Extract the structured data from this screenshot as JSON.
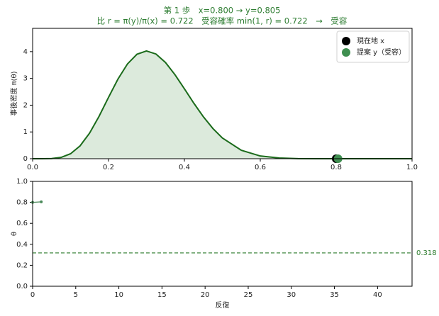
{
  "chart_data": [
    {
      "type": "line",
      "title": "第 1 歩　x=0.800 → y=0.805",
      "subtitle": "比 r = π(y)/π(x) = 0.722　受容確率 min(1, r) = 0.722　→　受容",
      "ylabel": "事後密度 π(θ)",
      "x": [
        0,
        0.025,
        0.05,
        0.075,
        0.1,
        0.125,
        0.15,
        0.175,
        0.2,
        0.225,
        0.25,
        0.275,
        0.3,
        0.325,
        0.35,
        0.375,
        0.4,
        0.425,
        0.45,
        0.475,
        0.5,
        0.55,
        0.6,
        0.65,
        0.7,
        0.75,
        0.8,
        0.9,
        1.0
      ],
      "values": [
        0,
        0.0001,
        0.0062,
        0.0486,
        0.1862,
        0.4789,
        0.9529,
        1.5818,
        2.2911,
        2.9779,
        3.5408,
        3.9033,
        4.0244,
        3.9114,
        3.5966,
        3.1413,
        2.6127,
        2.071,
        1.5665,
        1.1299,
        0.7762,
        0.3147,
        0.1019,
        0.0254,
        0.0046,
        0.0005,
        0,
        0,
        0
      ],
      "color": "#1b6b1b",
      "fill": "#dceadc",
      "points": [
        {
          "name": "現在地 x",
          "color": "#000000",
          "x": 0.8,
          "y": 0
        },
        {
          "name": "提案 y（受容）",
          "color": "#3f8f50",
          "x": 0.805,
          "y": 0
        }
      ],
      "legend": "upper right",
      "xlim": [
        0,
        1
      ],
      "ylim": [
        0,
        4.87
      ],
      "xticks": [
        {
          "value": 0,
          "label": "0.0"
        },
        0.2,
        0.4,
        0.6,
        0.8,
        {
          "value": 1,
          "label": "1.0"
        }
      ],
      "yticks": [
        0,
        1,
        2,
        3,
        4
      ]
    },
    {
      "type": "line",
      "xlabel": "反復",
      "ylabel": "θ",
      "x": [
        0,
        1
      ],
      "values": [
        0.8,
        0.805
      ],
      "color": "#4a8a5a",
      "reference": 0.318,
      "reference_color": "#2a7a2a",
      "xlim": [
        0,
        44
      ],
      "ylim": [
        0,
        1
      ],
      "xticks": [
        0,
        5,
        10,
        15,
        20,
        25,
        30,
        35,
        40
      ],
      "yticks": [
        {
          "value": 0,
          "label": "0.0"
        },
        0.2,
        0.4,
        0.6,
        0.8,
        {
          "value": 1,
          "label": "1.0"
        }
      ]
    }
  ]
}
